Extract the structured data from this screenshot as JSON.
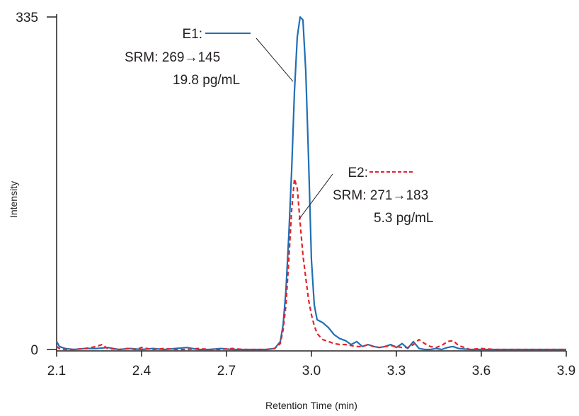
{
  "chart_data": {
    "type": "line",
    "xlabel": "Retention Time (min)",
    "ylabel": "Intensity",
    "xlim": [
      2.1,
      3.9
    ],
    "ylim": [
      0,
      335
    ],
    "x_ticks": [
      "2.1",
      "2.4",
      "2.7",
      "3.0",
      "3.3",
      "3.6",
      "3.9"
    ],
    "y_ticks": [
      "0",
      "335"
    ],
    "grid": false,
    "series": [
      {
        "name": "E1",
        "color": "#1f6fb4",
        "line_style": "solid",
        "x": [
          2.1,
          2.11,
          2.13,
          2.16,
          2.2,
          2.24,
          2.28,
          2.32,
          2.36,
          2.4,
          2.44,
          2.48,
          2.52,
          2.56,
          2.6,
          2.64,
          2.68,
          2.72,
          2.76,
          2.8,
          2.84,
          2.87,
          2.89,
          2.9,
          2.91,
          2.92,
          2.93,
          2.94,
          2.95,
          2.96,
          2.97,
          2.98,
          2.99,
          3.0,
          3.01,
          3.02,
          3.04,
          3.06,
          3.08,
          3.1,
          3.12,
          3.14,
          3.16,
          3.18,
          3.2,
          3.22,
          3.24,
          3.26,
          3.28,
          3.3,
          3.32,
          3.34,
          3.36,
          3.38,
          3.4,
          3.42,
          3.44,
          3.46,
          3.48,
          3.5,
          3.52,
          3.56,
          3.6,
          3.65,
          3.7,
          3.75,
          3.8,
          3.85,
          3.9
        ],
        "y": [
          8,
          3,
          1,
          0,
          1,
          1,
          2,
          0,
          1,
          0,
          1,
          0,
          1,
          2,
          0,
          0,
          1,
          0,
          0,
          0,
          0,
          1,
          8,
          25,
          60,
          115,
          180,
          260,
          315,
          335,
          332,
          280,
          190,
          90,
          45,
          30,
          27,
          22,
          15,
          11,
          9,
          5,
          8,
          3,
          5,
          3,
          2,
          3,
          5,
          2,
          6,
          1,
          8,
          1,
          0,
          0,
          1,
          0,
          2,
          3,
          1,
          0,
          0,
          0,
          0,
          0,
          0,
          0,
          0
        ]
      },
      {
        "name": "E2",
        "color": "#e0242b",
        "line_style": "dashed",
        "x": [
          2.1,
          2.11,
          2.13,
          2.16,
          2.2,
          2.24,
          2.26,
          2.28,
          2.32,
          2.35,
          2.38,
          2.4,
          2.44,
          2.48,
          2.52,
          2.56,
          2.6,
          2.64,
          2.68,
          2.72,
          2.76,
          2.8,
          2.84,
          2.87,
          2.89,
          2.9,
          2.91,
          2.92,
          2.93,
          2.94,
          2.95,
          2.96,
          2.97,
          2.98,
          2.99,
          3.0,
          3.01,
          3.02,
          3.04,
          3.06,
          3.08,
          3.1,
          3.12,
          3.14,
          3.16,
          3.18,
          3.2,
          3.22,
          3.24,
          3.26,
          3.28,
          3.3,
          3.32,
          3.34,
          3.36,
          3.38,
          3.4,
          3.42,
          3.44,
          3.46,
          3.48,
          3.5,
          3.52,
          3.56,
          3.6,
          3.65,
          3.7,
          3.75,
          3.8,
          3.85,
          3.9
        ],
        "y": [
          3,
          1,
          0,
          0,
          1,
          3,
          5,
          1,
          0,
          1,
          0,
          2,
          0,
          1,
          0,
          0,
          1,
          0,
          0,
          1,
          0,
          0,
          0,
          1,
          6,
          20,
          45,
          90,
          140,
          172,
          162,
          128,
          95,
          72,
          50,
          35,
          24,
          16,
          10,
          8,
          6,
          5,
          5,
          4,
          3,
          3,
          5,
          3,
          2,
          3,
          4,
          3,
          2,
          2,
          5,
          10,
          6,
          3,
          2,
          4,
          8,
          9,
          4,
          0,
          1,
          0,
          0,
          0,
          0,
          0,
          0
        ]
      }
    ],
    "annotations": [
      {
        "id": "e1",
        "label": "E1:",
        "line1": "SRM: 269→145",
        "line2": "19.8 pg/mL",
        "arrow_to": [
          2.95,
          270
        ]
      },
      {
        "id": "e2",
        "label": "E2:",
        "line1": "SRM: 271→183",
        "line2": "5.3 pg/mL",
        "arrow_to": [
          2.96,
          135
        ]
      }
    ]
  }
}
